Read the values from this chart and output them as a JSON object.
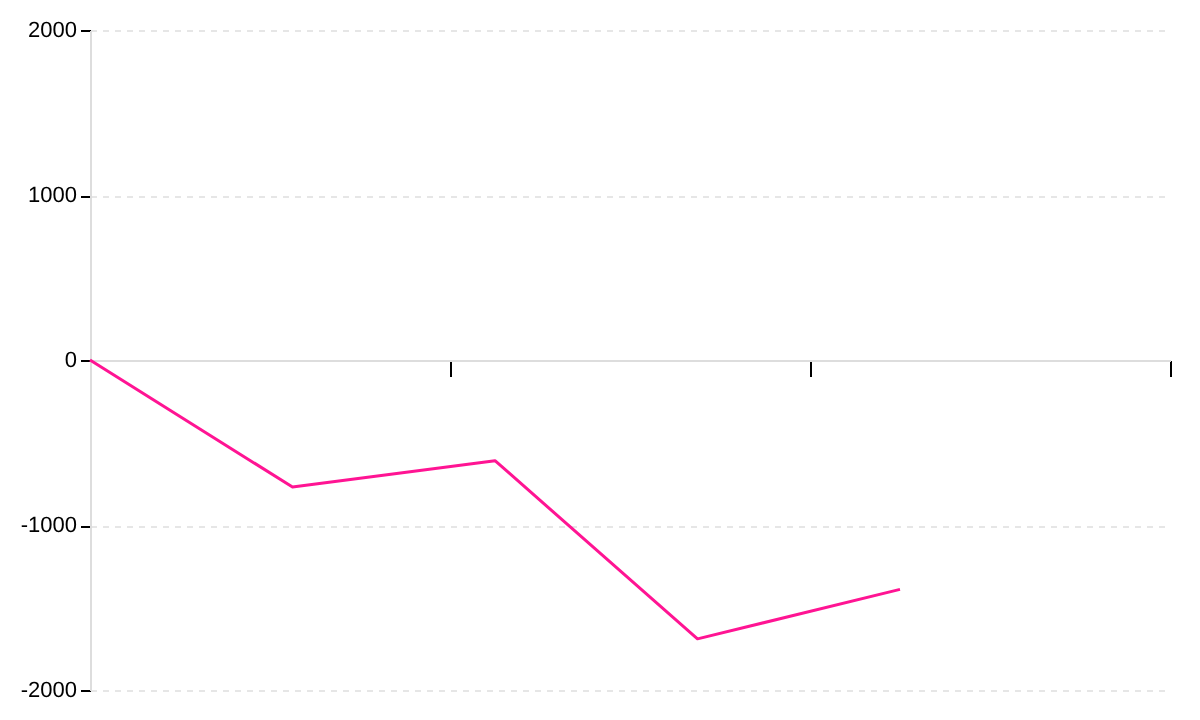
{
  "chart_data": {
    "type": "line",
    "categories": [
      null,
      null,
      null,
      null,
      null
    ],
    "series": [
      {
        "color": "#ff1493",
        "values": [
          0,
          -770,
          -610,
          -1690,
          -1390
        ]
      }
    ],
    "ylim": [
      -2000,
      2000
    ],
    "yticks": [
      -2000,
      -1000,
      0,
      1000,
      2000
    ],
    "grid": "y",
    "tick_labels": "y",
    "marker": "none"
  }
}
